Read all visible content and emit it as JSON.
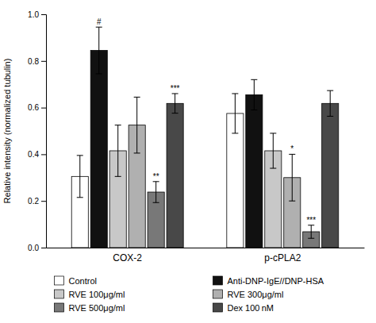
{
  "chart_data": {
    "type": "bar",
    "ylabel": "Relative intensity (normalized tubulin)",
    "categories": [
      "COX-2",
      "p-cPLA2"
    ],
    "series": [
      {
        "name": "Control",
        "color": "#ffffff",
        "values": [
          0.305,
          0.575
        ],
        "errors": [
          0.09,
          0.085
        ],
        "annotations": [
          null,
          null
        ]
      },
      {
        "name": "Anti-DNP-IgE//DNP-HSA",
        "color": "#111111",
        "values": [
          0.845,
          0.655
        ],
        "errors": [
          0.1,
          0.065
        ],
        "annotations": [
          "#",
          null
        ]
      },
      {
        "name": "RVE 100μg/ml",
        "color": "#c8c8c8",
        "values": [
          0.415,
          0.415
        ],
        "errors": [
          0.11,
          0.075
        ],
        "annotations": [
          null,
          null
        ]
      },
      {
        "name": "RVE 300μg/ml",
        "color": "#b0b0b0",
        "values": [
          0.525,
          0.3
        ],
        "errors": [
          0.12,
          0.1
        ],
        "annotations": [
          null,
          "*"
        ]
      },
      {
        "name": "RVE 500μg/ml",
        "color": "#787878",
        "values": [
          0.238,
          0.068
        ],
        "errors": [
          0.045,
          0.028
        ],
        "annotations": [
          "**",
          "***"
        ]
      },
      {
        "name": "Dex 100 nM",
        "color": "#484848",
        "values": [
          0.618,
          0.618
        ],
        "errors": [
          0.042,
          0.055
        ],
        "annotations": [
          "***",
          null
        ]
      }
    ],
    "ylim": [
      0.0,
      1.0
    ],
    "yticks": [
      {
        "value": 0.0,
        "label": "0.0"
      },
      0.2,
      0.4,
      0.6,
      0.8,
      {
        "value": 1.0,
        "label": "1.0"
      }
    ],
    "grid": false,
    "legend": "bottom"
  }
}
